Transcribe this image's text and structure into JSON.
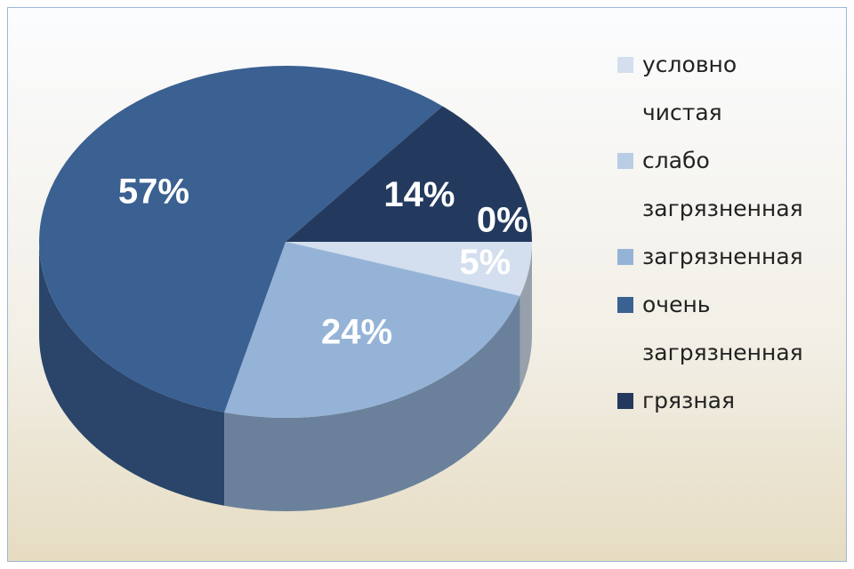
{
  "chart_data": {
    "type": "pie",
    "categories": [
      "условно чистая",
      "слабо загрязненная",
      "загрязненная",
      "очень загрязненная",
      "грязная"
    ],
    "values": [
      5,
      0,
      24,
      57,
      14
    ],
    "value_labels": [
      "5%",
      "0%",
      "24%",
      "57%",
      "14%"
    ],
    "colors": [
      "#d3dfee",
      "#b9cde5",
      "#95b3d7",
      "#3b6092",
      "#233a5e"
    ],
    "legend": "right"
  }
}
